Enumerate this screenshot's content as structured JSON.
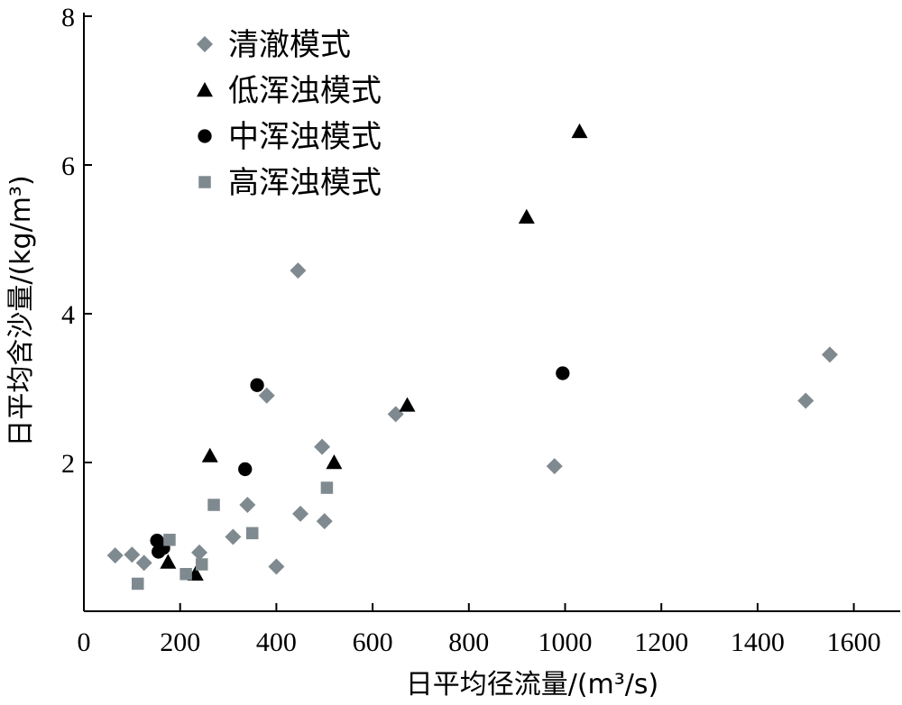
{
  "chart_data": {
    "type": "scatter",
    "title": "",
    "xlabel": "日平均径流量/(m³/s)",
    "ylabel": "日平均含沙量/(kg/m³)",
    "xlim": [
      0,
      1700
    ],
    "ylim": [
      0,
      8
    ],
    "x_ticks": [
      0,
      200,
      400,
      600,
      800,
      1000,
      1200,
      1400,
      1600
    ],
    "y_ticks": [
      2,
      4,
      6,
      8
    ],
    "grid": false,
    "legend_position": "top-left",
    "series": [
      {
        "name": "清澈模式",
        "marker": "diamond",
        "color": "#7f8a90",
        "points": [
          [
            65,
            0.75
          ],
          [
            100,
            0.76
          ],
          [
            125,
            0.65
          ],
          [
            240,
            0.79
          ],
          [
            310,
            1.0
          ],
          [
            340,
            1.43
          ],
          [
            380,
            2.9
          ],
          [
            400,
            0.6
          ],
          [
            445,
            4.58
          ],
          [
            450,
            1.31
          ],
          [
            495,
            2.21
          ],
          [
            500,
            1.21
          ],
          [
            648,
            2.65
          ],
          [
            978,
            1.95
          ],
          [
            1500,
            2.83
          ],
          [
            1550,
            3.45
          ]
        ]
      },
      {
        "name": "低浑浊模式",
        "marker": "triangle",
        "color": "#000000",
        "points": [
          [
            175,
            0.66
          ],
          [
            232,
            0.5
          ],
          [
            262,
            2.09
          ],
          [
            520,
            2.0
          ],
          [
            672,
            2.77
          ],
          [
            920,
            5.3
          ],
          [
            1030,
            6.45
          ]
        ]
      },
      {
        "name": "中浑浊模式",
        "marker": "circle",
        "color": "#000000",
        "points": [
          [
            152,
            0.95
          ],
          [
            155,
            0.8
          ],
          [
            165,
            0.85
          ],
          [
            335,
            1.91
          ],
          [
            360,
            3.04
          ],
          [
            995,
            3.2
          ]
        ]
      },
      {
        "name": "高浑浊模式",
        "marker": "square",
        "color": "#7f8a90",
        "points": [
          [
            112,
            0.37
          ],
          [
            178,
            0.96
          ],
          [
            212,
            0.5
          ],
          [
            245,
            0.63
          ],
          [
            270,
            1.43
          ],
          [
            350,
            1.05
          ],
          [
            505,
            1.66
          ]
        ]
      }
    ]
  }
}
